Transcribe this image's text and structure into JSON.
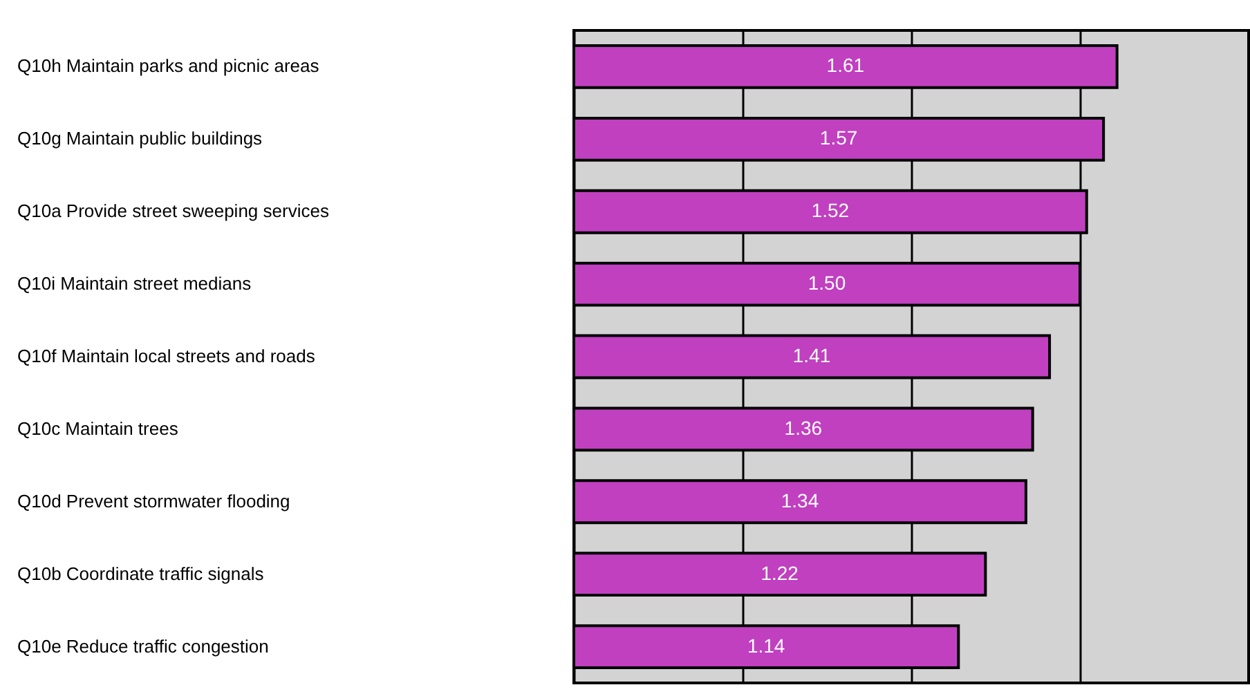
{
  "chart_data": {
    "type": "bar",
    "orientation": "horizontal",
    "categories": [
      "Q10h Maintain parks and picnic areas",
      "Q10g Maintain public buildings",
      "Q10a Provide street sweeping services",
      "Q10i Maintain street medians",
      "Q10f Maintain local streets and roads",
      "Q10c Maintain trees",
      "Q10d Prevent stormwater flooding",
      "Q10b Coordinate traffic signals",
      "Q10e Reduce traffic congestion"
    ],
    "values": [
      1.61,
      1.57,
      1.52,
      1.5,
      1.41,
      1.36,
      1.34,
      1.22,
      1.14
    ],
    "value_labels": [
      "1.61",
      "1.57",
      "1.52",
      "1.50",
      "1.41",
      "1.36",
      "1.34",
      "1.22",
      "1.14"
    ],
    "color": "#c040c0",
    "xlim": [
      0,
      2
    ],
    "xticks": [
      {
        "value": 0,
        "label": null
      },
      {
        "value": 0.5,
        "label": null
      },
      {
        "value": 1,
        "label": null
      },
      {
        "value": 1.5,
        "label": null
      },
      {
        "value": 2,
        "label": null
      }
    ],
    "grid": "x",
    "tick_labels": "y"
  }
}
